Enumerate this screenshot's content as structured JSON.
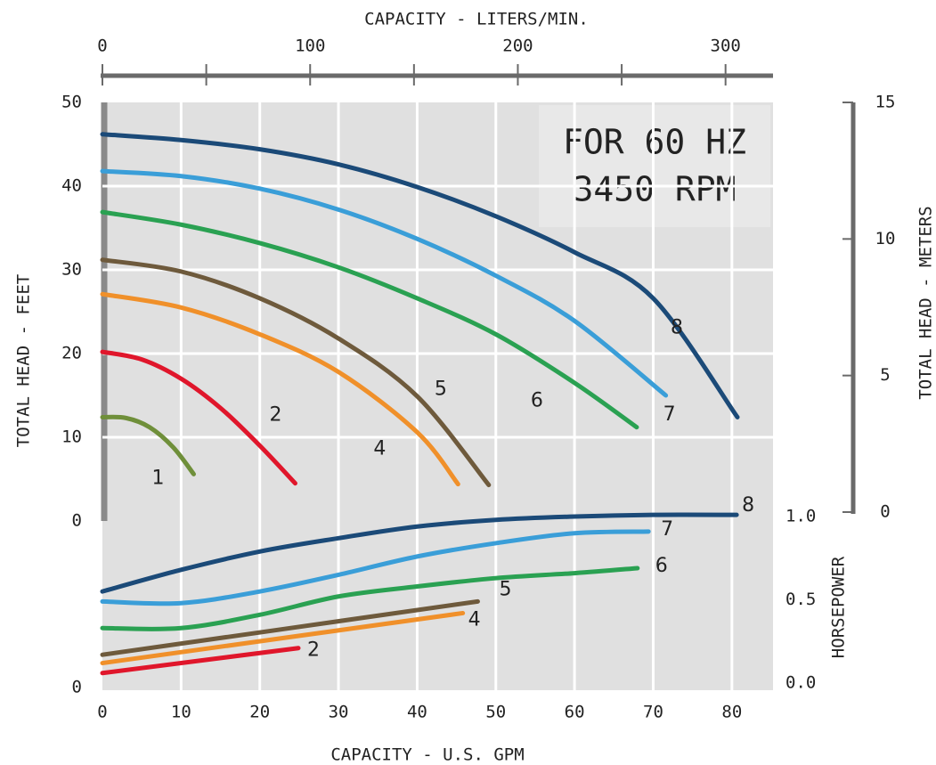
{
  "chart_data": [
    {
      "type": "line",
      "x2_label": "CAPACITY - LITERS/MIN.",
      "x2lim": [
        0,
        322
      ],
      "x2ticks": [
        0,
        100,
        200,
        300
      ],
      "x2minor_ticks": [
        50,
        150,
        250
      ],
      "xlim": [
        0,
        85
      ],
      "y_label": "TOTAL HEAD - FEET",
      "ylim": [
        0,
        50
      ],
      "yticks": [
        0,
        10,
        20,
        30,
        40,
        50
      ],
      "y2_label": "TOTAL HEAD - METERS",
      "y2lim": [
        0,
        15
      ],
      "y2ticks": [
        0,
        5,
        10,
        15
      ],
      "grid": true,
      "annotation": [
        "FOR 60 HZ",
        "3450 RPM"
      ],
      "series": [
        {
          "name": "1",
          "color": "#6f8f3a",
          "x": [
            0,
            3,
            6,
            9,
            11.6
          ],
          "values": [
            12.4,
            12.3,
            11.2,
            8.8,
            5.6
          ]
        },
        {
          "name": "2",
          "color": "#e0162b",
          "x": [
            0,
            5,
            10,
            15,
            20,
            24.5
          ],
          "values": [
            20.2,
            19.3,
            17,
            13.5,
            9,
            4.5
          ]
        },
        {
          "name": "4",
          "color": "#f0902a",
          "x": [
            0,
            10,
            20,
            30,
            40,
            45.2
          ],
          "values": [
            27.1,
            25.5,
            22.3,
            17.8,
            10.6,
            4.4
          ]
        },
        {
          "name": "5",
          "color": "#6e5a3c",
          "x": [
            0,
            10,
            20,
            30,
            40,
            49.1
          ],
          "values": [
            31.2,
            29.8,
            26.6,
            21.8,
            14.9,
            4.3
          ]
        },
        {
          "name": "6",
          "color": "#2aa152",
          "x": [
            0,
            10,
            20,
            30,
            40,
            50,
            60,
            67.9
          ],
          "values": [
            36.9,
            35.4,
            33.2,
            30.3,
            26.6,
            22.3,
            16.5,
            11.2
          ]
        },
        {
          "name": "7",
          "color": "#3a9ed8",
          "x": [
            0,
            10,
            20,
            30,
            40,
            50,
            60,
            71.6
          ],
          "values": [
            41.8,
            41.2,
            39.7,
            37.2,
            33.7,
            29.3,
            23.9,
            15
          ]
        },
        {
          "name": "8",
          "color": "#1b4a78",
          "x": [
            0,
            10,
            20,
            30,
            40,
            50,
            60,
            70,
            80.7
          ],
          "values": [
            46.2,
            45.5,
            44.4,
            42.6,
            39.9,
            36.4,
            32.1,
            26.6,
            12.4
          ]
        }
      ]
    },
    {
      "type": "line",
      "x_label": "CAPACITY - U.S. GPM",
      "xlim": [
        0,
        85
      ],
      "xticks": [
        0,
        10,
        20,
        30,
        40,
        50,
        60,
        70,
        80
      ],
      "ylim": [
        0,
        1
      ],
      "yticks": [
        0
      ],
      "y2_label": "HORSEPOWER",
      "y2lim": [
        0,
        1
      ],
      "y2ticks": [
        {
          "value": 0,
          "label": "0.0"
        },
        {
          "value": 0.5,
          "label": "0.5"
        },
        {
          "value": 1,
          "label": "1.0"
        }
      ],
      "series": [
        {
          "name": "2",
          "color": "#e0162b",
          "x": [
            0,
            24.9
          ],
          "values": [
            0.06,
            0.21
          ]
        },
        {
          "name": "4",
          "color": "#f0902a",
          "x": [
            0,
            45.8
          ],
          "values": [
            0.12,
            0.42
          ]
        },
        {
          "name": "5",
          "color": "#6e5a3c",
          "x": [
            0,
            47.7
          ],
          "values": [
            0.17,
            0.49
          ]
        },
        {
          "name": "6",
          "color": "#2aa152",
          "x": [
            0,
            10,
            20,
            30,
            40,
            50,
            60,
            68
          ],
          "values": [
            0.33,
            0.33,
            0.41,
            0.52,
            0.58,
            0.63,
            0.66,
            0.69
          ]
        },
        {
          "name": "7",
          "color": "#3a9ed8",
          "x": [
            0,
            10,
            20,
            30,
            40,
            50,
            60,
            69.4
          ],
          "values": [
            0.49,
            0.48,
            0.55,
            0.65,
            0.76,
            0.84,
            0.9,
            0.91
          ]
        },
        {
          "name": "8",
          "color": "#1b4a78",
          "x": [
            0,
            10,
            20,
            30,
            40,
            50,
            60,
            70,
            80.6
          ],
          "values": [
            0.55,
            0.68,
            0.79,
            0.87,
            0.94,
            0.98,
            1,
            1.01,
            1.01
          ]
        }
      ]
    }
  ]
}
